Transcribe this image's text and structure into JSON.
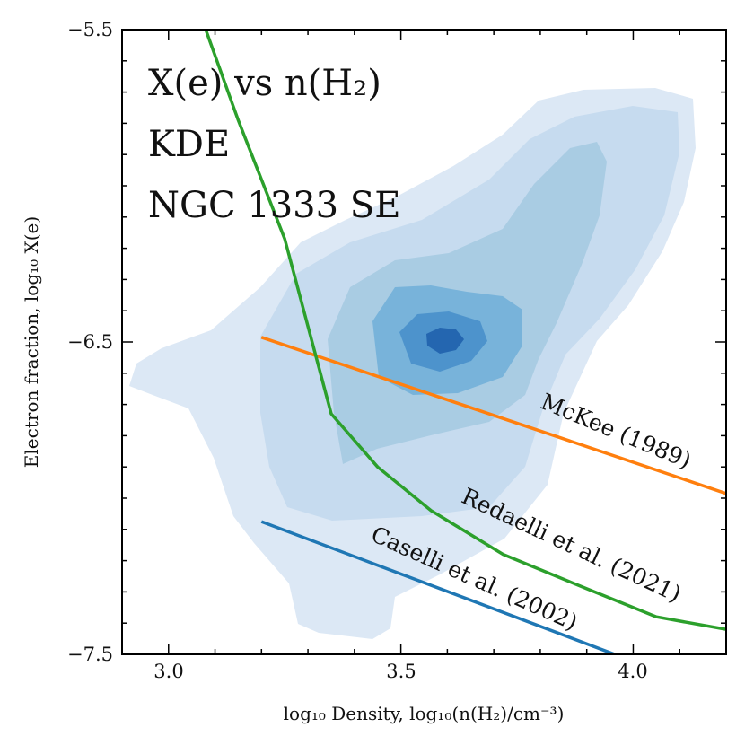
{
  "chart_data": {
    "type": "line",
    "title_lines": [
      "X(e) vs n(H₂)",
      "KDE",
      "NGC 1333 SE"
    ],
    "xlabel": "log₁₀ Density, log₁₀(n(H₂)/cm⁻³)",
    "ylabel": "Electron fraction, log₁₀ X(e)",
    "xlim": [
      2.9,
      4.2
    ],
    "ylim": [
      -7.5,
      -5.5
    ],
    "x_ticks": [
      3.0,
      3.5,
      4.0
    ],
    "x_tick_labels": [
      "3.0",
      "3.5",
      "4.0"
    ],
    "y_ticks": [
      -7.5,
      -6.5,
      -5.5
    ],
    "y_tick_labels": [
      "−7.5",
      "−6.5",
      "−5.5"
    ],
    "x_minor_step": 0.1,
    "y_minor_step": 0.1,
    "series": [
      {
        "name": "McKee (1989)",
        "color": "#ff7f0e",
        "x": [
          3.2,
          4.2
        ],
        "y": [
          -6.485,
          -6.985
        ]
      },
      {
        "name": "Redaelli et al. (2021)",
        "color": "#2ca02c",
        "x": [
          3.08,
          3.15,
          3.25,
          3.35,
          3.45,
          3.565,
          3.72,
          3.9,
          4.05,
          4.2
        ],
        "y": [
          -5.5,
          -5.79,
          -6.17,
          -6.73,
          -6.9,
          -7.04,
          -7.18,
          -7.29,
          -7.38,
          -7.42
        ]
      },
      {
        "name": "Caselli et al. (2002)",
        "color": "#1f77b4",
        "x": [
          3.2,
          3.96
        ],
        "y": [
          -7.075,
          -7.5
        ]
      }
    ],
    "kde_contours": {
      "levels": [
        "level 1",
        "level 2",
        "level 3",
        "level 4",
        "level 5",
        "level 6"
      ],
      "colors": [
        "#dce8f5",
        "#c6dbef",
        "#a9cce3",
        "#78b3da",
        "#4d93cc",
        "#2466b0"
      ]
    }
  }
}
